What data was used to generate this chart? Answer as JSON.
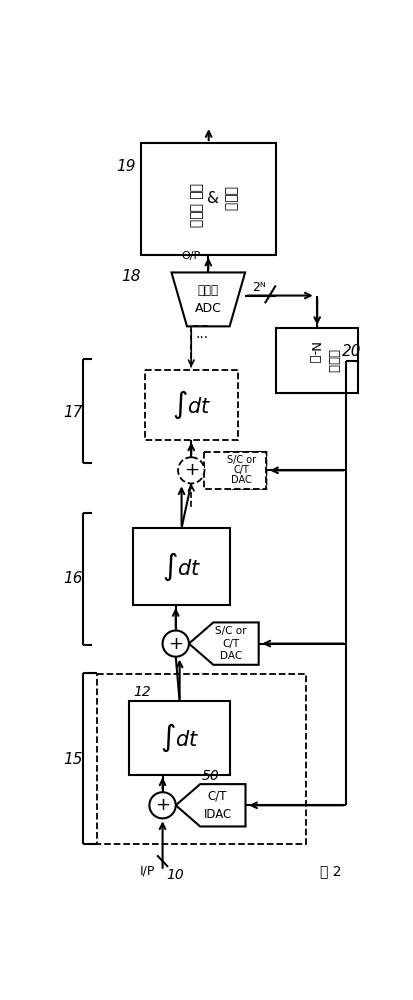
{
  "bg_color": "#ffffff",
  "lc": "#000000",
  "fig_width": 4.14,
  "fig_height": 10.0,
  "title": "图 2",
  "label_19": "19",
  "label_18": "18",
  "label_17": "17",
  "label_16": "16",
  "label_15": "15",
  "label_12": "12",
  "label_20": "20",
  "label_50": "50",
  "label_10": "10",
  "label_op": "O/P",
  "label_ip": "I/P",
  "label_2n": "2ᴺ",
  "box19_l1": "数字",
  "box19_l2": "滤波器",
  "box19_l3": "&",
  "box19_l4": "提取器",
  "box18_l1": "快闪式",
  "box18_l2": "ADC",
  "box20_l1": "N-位",
  "box20_l2": "加扰器",
  "dac_sc_l1": "S/C or",
  "dac_sc_l2": "C/T",
  "dac_sc_l3": "DAC",
  "dac4_l1": "C/T",
  "dac4_l2": "IDAC",
  "int_label": "$\\int dt$"
}
